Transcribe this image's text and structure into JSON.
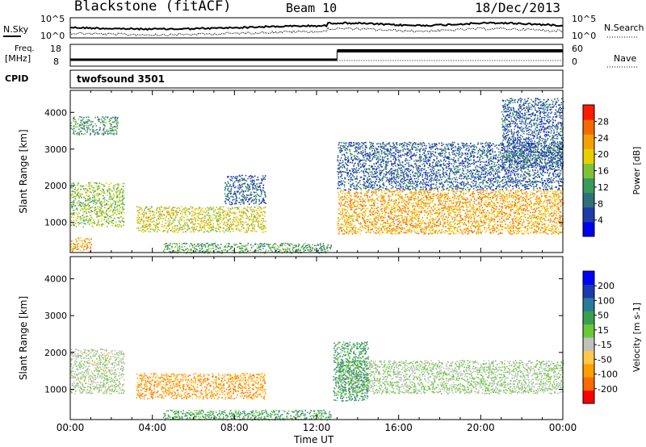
{
  "header": {
    "station": "Blackstone (fitACF)",
    "beam": "Beam 10",
    "date": "18/Dec/2013"
  },
  "noise_panel": {
    "left_label": "N.Sky",
    "right_label": "N.Search",
    "left_ticks": [
      "10^5",
      "10^0"
    ],
    "right_ticks": [
      "10^5",
      "10^0"
    ]
  },
  "freq_panel": {
    "left_label_1": "Freq.",
    "left_label_2": "[MHz]",
    "left_ticks": [
      "18",
      "8"
    ],
    "right_label": "Nave",
    "right_ticks": [
      "60",
      "0"
    ]
  },
  "cpid": {
    "label": "CPID",
    "value": "twofsound 3501"
  },
  "x_axis": {
    "label": "Time UT",
    "ticks": [
      "00:00",
      "04:00",
      "08:00",
      "12:00",
      "16:00",
      "20:00",
      "00:00"
    ]
  },
  "colors": {
    "power_scale": [
      "#0000ee",
      "#1e3ca8",
      "#2e6f7a",
      "#3a9a5a",
      "#7fc23a",
      "#e8d000",
      "#f5a000",
      "#f56a00",
      "#ff1a00"
    ],
    "velocity_scale": [
      "#ff0000",
      "#ff6a00",
      "#ffa000",
      "#ffc84a",
      "#c0c0c0",
      "#6ac83a",
      "#3aa050",
      "#2a7a9a",
      "#1a3ab0",
      "#0000ff"
    ]
  },
  "chart_data": [
    {
      "type": "heatmap",
      "name_printed": "",
      "ylabel": "Slant Range [km]",
      "xlabel": "",
      "ylim": [
        180,
        4600
      ],
      "yticks": [
        "1000",
        "2000",
        "3000",
        "4000"
      ],
      "colorbar": {
        "label": "Power [dB]",
        "ticks": [
          "4",
          "8",
          "12",
          "16",
          "20",
          "24",
          "28"
        ],
        "range": [
          0,
          30
        ]
      },
      "regions": [
        {
          "t0": 0.0,
          "t1": 2.6,
          "r0": 900,
          "r1": 2100,
          "level": 0.5
        },
        {
          "t0": 0.0,
          "t1": 1.0,
          "r0": 200,
          "r1": 600,
          "level": 0.75
        },
        {
          "t0": 0.0,
          "t1": 2.3,
          "r0": 3400,
          "r1": 3900,
          "level": 0.35
        },
        {
          "t0": 3.2,
          "t1": 9.5,
          "r0": 750,
          "r1": 1450,
          "level": 0.6
        },
        {
          "t0": 7.5,
          "t1": 9.5,
          "r0": 1500,
          "r1": 2300,
          "level": 0.2
        },
        {
          "t0": 4.5,
          "t1": 12.7,
          "r0": 180,
          "r1": 450,
          "level": 0.4
        },
        {
          "t0": 13.0,
          "t1": 24.0,
          "r0": 700,
          "r1": 1900,
          "level": 0.75
        },
        {
          "t0": 13.0,
          "t1": 24.0,
          "r0": 1900,
          "r1": 3200,
          "level": 0.2
        },
        {
          "t0": 21.0,
          "t1": 24.0,
          "r0": 2500,
          "r1": 4400,
          "level": 0.2
        }
      ]
    },
    {
      "type": "heatmap",
      "name_printed": "",
      "ylabel": "Slant Range [km]",
      "xlabel": "Time UT",
      "ylim": [
        180,
        4600
      ],
      "yticks": [
        "1000",
        "2000",
        "3000",
        "4000"
      ],
      "colorbar": {
        "label": "Velocity [m s-1]",
        "ticks": [
          "200",
          "100",
          "50",
          "15",
          "-15",
          "-50",
          "-100",
          "-200"
        ],
        "range": [
          -250,
          250
        ]
      },
      "regions": [
        {
          "t0": 0.0,
          "t1": 2.6,
          "r0": 900,
          "r1": 2100,
          "level": -0.05
        },
        {
          "t0": 3.2,
          "t1": 9.5,
          "r0": 750,
          "r1": 1450,
          "level": -0.55
        },
        {
          "t0": 13.0,
          "t1": 24.0,
          "r0": 900,
          "r1": 1800,
          "level": 0.0
        },
        {
          "t0": 12.8,
          "t1": 14.5,
          "r0": 700,
          "r1": 2300,
          "level": 0.35
        },
        {
          "t0": 4.5,
          "t1": 12.7,
          "r0": 180,
          "r1": 450,
          "level": 0.3
        }
      ]
    }
  ]
}
